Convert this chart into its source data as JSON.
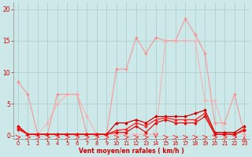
{
  "background_color": "#cce8e8",
  "grid_color": "#aacccc",
  "xlabel": "Vent moyen/en rafales ( km/h )",
  "ylabel_ticks": [
    0,
    5,
    10,
    15,
    20
  ],
  "xlim": [
    -0.5,
    23.5
  ],
  "ylim": [
    -0.5,
    21
  ],
  "figsize": [
    3.2,
    2.0
  ],
  "dpi": 100,
  "series": [
    {
      "name": "rafales_max",
      "color": "#ff8888",
      "alpha": 0.75,
      "lw": 0.9,
      "marker": "D",
      "ms": 2.0,
      "data_x": [
        0,
        1,
        2,
        3,
        4,
        5,
        6,
        7,
        8,
        9,
        10,
        11,
        12,
        13,
        14,
        15,
        16,
        17,
        18,
        19,
        20,
        21,
        22,
        23
      ],
      "data_y": [
        8.5,
        6.5,
        0.2,
        0.2,
        6.5,
        6.5,
        6.5,
        0.2,
        0.2,
        0.2,
        10.5,
        10.5,
        15.5,
        13.0,
        15.5,
        15.0,
        15.0,
        18.5,
        16.0,
        13.0,
        2.0,
        2.0,
        6.5,
        0.2
      ]
    },
    {
      "name": "rafales_mean",
      "color": "#ffaaaa",
      "alpha": 0.75,
      "lw": 0.9,
      "marker": "D",
      "ms": 2.0,
      "data_x": [
        0,
        1,
        2,
        3,
        4,
        5,
        6,
        7,
        8,
        9,
        10,
        11,
        12,
        13,
        14,
        15,
        16,
        17,
        18,
        19,
        20,
        21,
        22,
        23
      ],
      "data_y": [
        1.5,
        0.2,
        0.2,
        2.0,
        5.0,
        6.5,
        6.5,
        3.0,
        0.2,
        0.2,
        0.2,
        0.2,
        0.2,
        0.2,
        0.2,
        15.0,
        15.0,
        15.0,
        15.0,
        5.5,
        5.5,
        0.5,
        0.5,
        0.2
      ]
    },
    {
      "name": "vent_max",
      "color": "#cc0000",
      "alpha": 1.0,
      "lw": 0.9,
      "marker": "D",
      "ms": 2.0,
      "data_x": [
        0,
        1,
        2,
        3,
        4,
        5,
        6,
        7,
        8,
        9,
        10,
        11,
        12,
        13,
        14,
        15,
        16,
        17,
        18,
        19,
        20,
        21,
        22,
        23
      ],
      "data_y": [
        1.5,
        0.2,
        0.2,
        0.2,
        0.2,
        0.2,
        0.2,
        0.2,
        0.2,
        0.2,
        2.0,
        2.0,
        2.5,
        2.0,
        3.0,
        3.0,
        3.0,
        3.0,
        3.5,
        4.0,
        0.5,
        0.5,
        0.5,
        1.5
      ]
    },
    {
      "name": "vent_mean",
      "color": "#ff2222",
      "alpha": 1.0,
      "lw": 0.9,
      "marker": "D",
      "ms": 2.0,
      "data_x": [
        0,
        1,
        2,
        3,
        4,
        5,
        6,
        7,
        8,
        9,
        10,
        11,
        12,
        13,
        14,
        15,
        16,
        17,
        18,
        19,
        20,
        21,
        22,
        23
      ],
      "data_y": [
        1.2,
        0.2,
        0.2,
        0.2,
        0.2,
        0.2,
        0.2,
        0.2,
        0.2,
        0.2,
        0.8,
        1.0,
        2.0,
        1.5,
        2.5,
        2.8,
        2.5,
        2.5,
        2.5,
        3.5,
        0.2,
        0.2,
        0.2,
        1.0
      ]
    },
    {
      "name": "vent_min",
      "color": "#dd1111",
      "alpha": 1.0,
      "lw": 0.9,
      "marker": "D",
      "ms": 2.0,
      "data_x": [
        0,
        1,
        2,
        3,
        4,
        5,
        6,
        7,
        8,
        9,
        10,
        11,
        12,
        13,
        14,
        15,
        16,
        17,
        18,
        19,
        20,
        21,
        22,
        23
      ],
      "data_y": [
        1.0,
        0.2,
        0.2,
        0.2,
        0.2,
        0.2,
        0.2,
        0.2,
        0.2,
        0.2,
        0.5,
        0.5,
        1.5,
        0.5,
        2.0,
        2.5,
        2.0,
        2.0,
        2.0,
        3.0,
        0.2,
        0.2,
        0.2,
        0.8
      ]
    }
  ],
  "arrows_x": [
    0,
    1,
    2,
    3,
    4,
    5,
    6,
    7,
    8,
    9,
    10,
    11,
    12,
    13,
    14,
    15,
    16,
    17,
    18,
    19,
    20,
    21,
    22,
    23
  ],
  "arrow_directions": [
    0,
    0,
    0,
    0,
    0,
    0,
    0,
    0,
    0,
    0,
    0,
    0,
    0,
    225,
    180,
    0,
    0,
    0,
    0,
    0,
    0,
    0,
    0,
    90
  ],
  "arrow_color": "#ff2222"
}
